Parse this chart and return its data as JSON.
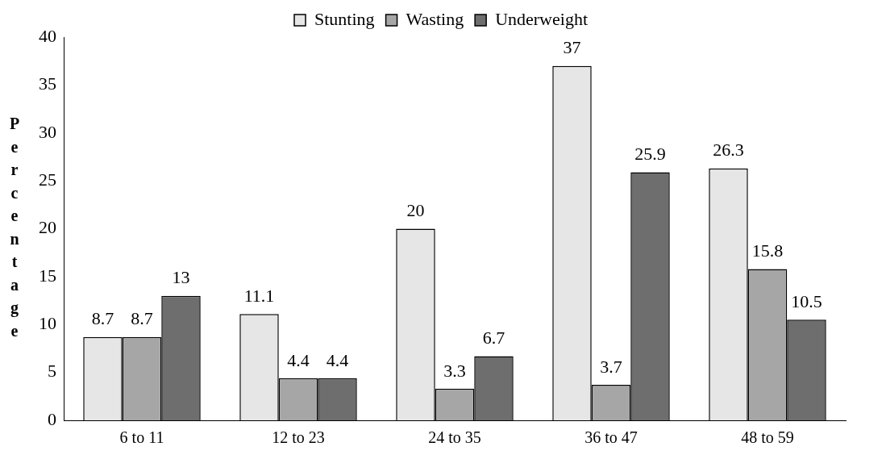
{
  "chart_data": {
    "type": "bar",
    "ylabel": "Percentage",
    "categories": [
      "6 to 11",
      "12 to 23",
      "24 to 35",
      "36 to 47",
      "48 to 59"
    ],
    "series": [
      {
        "name": "Stunting",
        "color": "#e6e6e6",
        "values": [
          8.7,
          11.1,
          20,
          37,
          26.3
        ]
      },
      {
        "name": "Wasting",
        "color": "#a6a6a6",
        "values": [
          8.7,
          4.4,
          3.3,
          3.7,
          15.8
        ]
      },
      {
        "name": "Underweight",
        "color": "#6e6e6e",
        "values": [
          13,
          4.4,
          6.7,
          25.9,
          10.5
        ]
      }
    ],
    "ylim": [
      0,
      40
    ],
    "yticks": [
      0,
      5,
      10,
      15,
      20,
      25,
      30,
      35,
      40
    ],
    "grid": false,
    "legend": "top",
    "data_labels": true
  }
}
